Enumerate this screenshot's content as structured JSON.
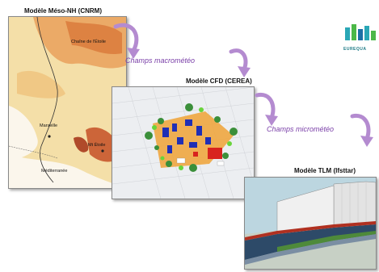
{
  "panels": {
    "meso": {
      "title": "Modèle Méso-NH (CNRM)",
      "labels": {
        "plateau": "Chaîne de l'Étoile",
        "marseille": "Marseille",
        "etoile": "Mt Étoile",
        "mediterranee": "Méditerranée"
      }
    },
    "cfd": {
      "title": "Modèle CFD (CEREA)"
    },
    "tlm": {
      "title": "Modèle TLM (Ifsttar)"
    }
  },
  "flows": {
    "macro": "Champs macrométéo",
    "micro": "Champs micrométéo"
  },
  "logo": {
    "text": "EUREQUA",
    "colors": [
      "#2aa7b6",
      "#4cb848",
      "#1d6fa5"
    ]
  }
}
